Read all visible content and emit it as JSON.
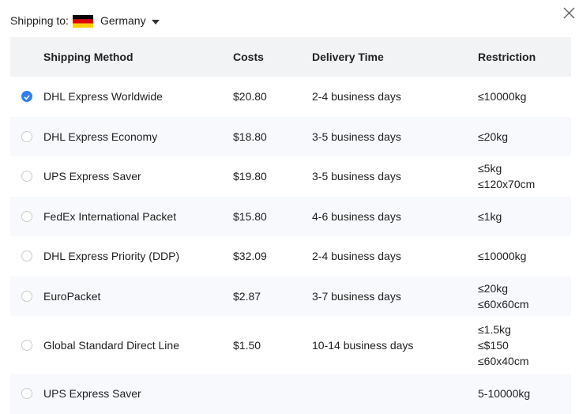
{
  "header": {
    "label": "Shipping to:",
    "country": "Germany"
  },
  "table": {
    "columns": [
      "Shipping Method",
      "Costs",
      "Delivery Time",
      "Restriction"
    ],
    "selected": 0,
    "rows": [
      {
        "method": "DHL Express Worldwide",
        "cost": "$20.80",
        "delivery": "2-4 business days",
        "restriction": [
          "≤10000kg"
        ]
      },
      {
        "method": "DHL Express Economy",
        "cost": "$18.80",
        "delivery": "3-5 business days",
        "restriction": [
          "≤20kg"
        ]
      },
      {
        "method": "UPS Express Saver",
        "cost": "$19.80",
        "delivery": "3-5 business days",
        "restriction": [
          "≤5kg",
          "≤120x70cm"
        ]
      },
      {
        "method": "FedEx International Packet",
        "cost": "$15.80",
        "delivery": "4-6 business days",
        "restriction": [
          "≤1kg"
        ]
      },
      {
        "method": "DHL Express Priority (DDP)",
        "cost": "$32.09",
        "delivery": "2-4 business days",
        "restriction": [
          "≤10000kg"
        ]
      },
      {
        "method": "EuroPacket",
        "cost": "$2.87",
        "delivery": "3-7 business days",
        "restriction": [
          "≤20kg",
          "≤60x60cm"
        ]
      },
      {
        "method": "Global Standard Direct Line",
        "cost": "$1.50",
        "delivery": "10-14 business days",
        "restriction": [
          "≤1.5kg",
          "≤$150",
          "≤60x40cm"
        ]
      },
      {
        "method": "UPS Express Saver",
        "restriction": [
          "5-10000kg"
        ]
      }
    ]
  }
}
